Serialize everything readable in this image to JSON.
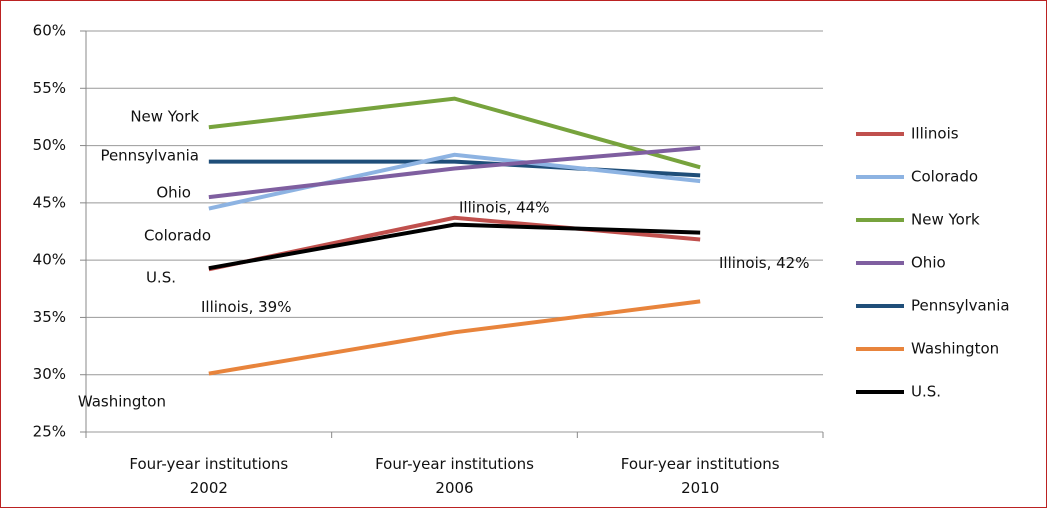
{
  "chart_data": {
    "type": "line",
    "categories": [
      "Four-year institutions\n2002",
      "Four-year institutions\n2006",
      "Four-year institutions\n2010"
    ],
    "series": [
      {
        "name": "Illinois",
        "color": "#c0504d",
        "values": [
          39.2,
          43.7,
          41.8
        ],
        "value_labels": [
          "Illinois, 39%",
          "Illinois, 44%",
          "Illinois, 42%"
        ]
      },
      {
        "name": "Colorado",
        "color": "#8db3e2",
        "values": [
          44.5,
          49.2,
          46.9
        ]
      },
      {
        "name": "New York",
        "color": "#77a33d",
        "values": [
          51.6,
          54.1,
          48.1
        ]
      },
      {
        "name": "Ohio",
        "color": "#7f5fa0",
        "values": [
          45.5,
          48.0,
          49.8
        ]
      },
      {
        "name": "Pennsylvania",
        "color": "#1f4e79",
        "values": [
          48.6,
          48.6,
          47.4
        ]
      },
      {
        "name": "Washington",
        "color": "#e8843c",
        "values": [
          30.1,
          33.7,
          36.4
        ]
      },
      {
        "name": "U.S.",
        "color": "#000000",
        "values": [
          39.3,
          43.1,
          42.4
        ]
      }
    ],
    "annotations": [
      "New York",
      "Pennsylvania",
      "Ohio",
      "Colorado",
      "U.S.",
      "Washington"
    ],
    "ylim": [
      25,
      60
    ],
    "yticks": [
      {
        "value": 25,
        "label": "25%"
      },
      {
        "value": 30,
        "label": "30%"
      },
      {
        "value": 35,
        "label": "35%"
      },
      {
        "value": 40,
        "label": "40%"
      },
      {
        "value": 45,
        "label": "45%"
      },
      {
        "value": 50,
        "label": "50%"
      },
      {
        "value": 55,
        "label": "55%"
      },
      {
        "value": 60,
        "label": "60%"
      }
    ],
    "grid": true,
    "legend": "right"
  }
}
